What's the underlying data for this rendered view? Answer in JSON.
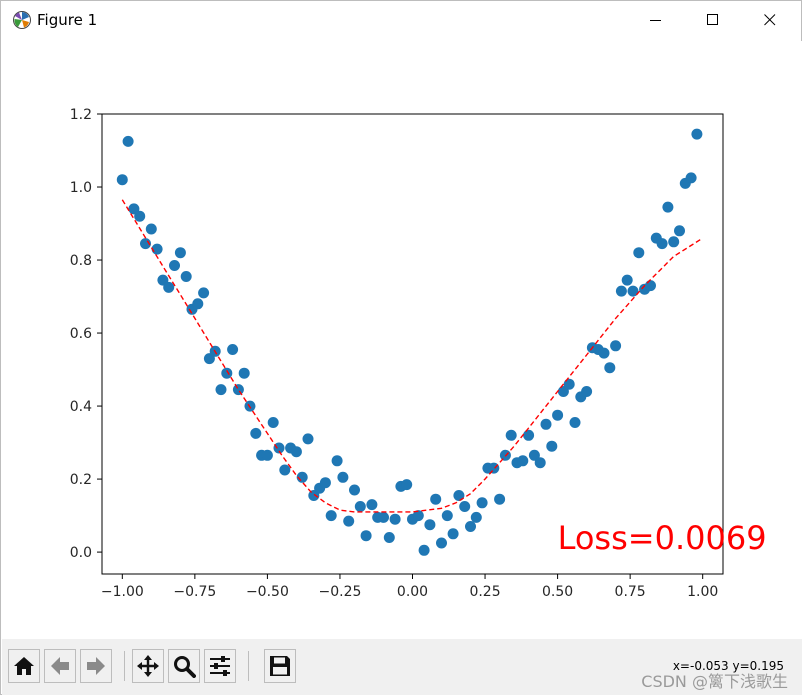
{
  "window": {
    "title": "Figure 1"
  },
  "icons": {
    "app": "matplotlib-figure-icon",
    "minimize": "minimize-icon",
    "maximize": "maximize-icon",
    "close": "close-icon",
    "home": "home-icon",
    "back": "arrow-left-icon",
    "forward": "arrow-right-icon",
    "pan": "move-arrows-icon",
    "zoom": "magnifier-icon",
    "configure": "sliders-icon",
    "save": "floppy-disk-icon"
  },
  "toolbar": {
    "coord_readout": "x=-0.053 y=0.195"
  },
  "watermark": "CSDN @篱下浅歌生",
  "colors": {
    "scatter": "#1f77b4",
    "fit": "#ff0000",
    "annotation": "#ff0000"
  },
  "chart_data": {
    "type": "scatter",
    "title": "",
    "xlabel": "",
    "ylabel": "",
    "xlim": [
      -1.07,
      1.07
    ],
    "ylim": [
      -0.06,
      1.2
    ],
    "xticks": [
      -1.0,
      -0.75,
      -0.5,
      -0.25,
      0.0,
      0.25,
      0.5,
      0.75,
      1.0
    ],
    "xtick_labels": [
      "−1.00",
      "−0.75",
      "−0.50",
      "−0.25",
      "0.00",
      "0.25",
      "0.50",
      "0.75",
      "1.00"
    ],
    "yticks": [
      0.0,
      0.2,
      0.4,
      0.6,
      0.8,
      1.0,
      1.2
    ],
    "ytick_labels": [
      "0.0",
      "0.2",
      "0.4",
      "0.6",
      "0.8",
      "1.0",
      "1.2"
    ],
    "grid": false,
    "annotation": {
      "text": "Loss=0.0069",
      "x": 0.5,
      "y": 0.0
    },
    "series": [
      {
        "kind": "scatter",
        "points": [
          [
            -1.0,
            1.02
          ],
          [
            -0.98,
            1.125
          ],
          [
            -0.96,
            0.94
          ],
          [
            -0.94,
            0.92
          ],
          [
            -0.92,
            0.845
          ],
          [
            -0.9,
            0.885
          ],
          [
            -0.88,
            0.83
          ],
          [
            -0.86,
            0.745
          ],
          [
            -0.84,
            0.725
          ],
          [
            -0.82,
            0.785
          ],
          [
            -0.8,
            0.82
          ],
          [
            -0.78,
            0.755
          ],
          [
            -0.76,
            0.665
          ],
          [
            -0.74,
            0.68
          ],
          [
            -0.72,
            0.71
          ],
          [
            -0.7,
            0.53
          ],
          [
            -0.68,
            0.55
          ],
          [
            -0.66,
            0.445
          ],
          [
            -0.64,
            0.49
          ],
          [
            -0.62,
            0.555
          ],
          [
            -0.6,
            0.445
          ],
          [
            -0.58,
            0.49
          ],
          [
            -0.56,
            0.4
          ],
          [
            -0.54,
            0.325
          ],
          [
            -0.52,
            0.265
          ],
          [
            -0.5,
            0.265
          ],
          [
            -0.48,
            0.355
          ],
          [
            -0.46,
            0.285
          ],
          [
            -0.44,
            0.225
          ],
          [
            -0.42,
            0.285
          ],
          [
            -0.4,
            0.275
          ],
          [
            -0.38,
            0.205
          ],
          [
            -0.36,
            0.31
          ],
          [
            -0.34,
            0.155
          ],
          [
            -0.32,
            0.175
          ],
          [
            -0.3,
            0.19
          ],
          [
            -0.28,
            0.1
          ],
          [
            -0.26,
            0.25
          ],
          [
            -0.24,
            0.205
          ],
          [
            -0.22,
            0.085
          ],
          [
            -0.2,
            0.17
          ],
          [
            -0.18,
            0.125
          ],
          [
            -0.16,
            0.045
          ],
          [
            -0.14,
            0.13
          ],
          [
            -0.12,
            0.095
          ],
          [
            -0.1,
            0.095
          ],
          [
            -0.08,
            0.04
          ],
          [
            -0.06,
            0.09
          ],
          [
            -0.04,
            0.18
          ],
          [
            -0.02,
            0.185
          ],
          [
            0.0,
            0.09
          ],
          [
            0.02,
            0.1
          ],
          [
            0.04,
            0.005
          ],
          [
            0.06,
            0.075
          ],
          [
            0.08,
            0.145
          ],
          [
            0.1,
            0.025
          ],
          [
            0.12,
            0.1
          ],
          [
            0.14,
            0.05
          ],
          [
            0.16,
            0.155
          ],
          [
            0.18,
            0.125
          ],
          [
            0.2,
            0.07
          ],
          [
            0.22,
            0.095
          ],
          [
            0.24,
            0.135
          ],
          [
            0.26,
            0.23
          ],
          [
            0.28,
            0.23
          ],
          [
            0.3,
            0.145
          ],
          [
            0.32,
            0.265
          ],
          [
            0.34,
            0.32
          ],
          [
            0.36,
            0.245
          ],
          [
            0.38,
            0.25
          ],
          [
            0.4,
            0.32
          ],
          [
            0.42,
            0.265
          ],
          [
            0.44,
            0.245
          ],
          [
            0.46,
            0.35
          ],
          [
            0.48,
            0.29
          ],
          [
            0.5,
            0.375
          ],
          [
            0.52,
            0.44
          ],
          [
            0.54,
            0.46
          ],
          [
            0.56,
            0.355
          ],
          [
            0.58,
            0.425
          ],
          [
            0.6,
            0.44
          ],
          [
            0.62,
            0.56
          ],
          [
            0.64,
            0.555
          ],
          [
            0.66,
            0.545
          ],
          [
            0.68,
            0.505
          ],
          [
            0.7,
            0.565
          ],
          [
            0.72,
            0.715
          ],
          [
            0.74,
            0.745
          ],
          [
            0.76,
            0.715
          ],
          [
            0.78,
            0.82
          ],
          [
            0.8,
            0.72
          ],
          [
            0.82,
            0.73
          ],
          [
            0.84,
            0.86
          ],
          [
            0.86,
            0.845
          ],
          [
            0.88,
            0.945
          ],
          [
            0.9,
            0.85
          ],
          [
            0.92,
            0.88
          ],
          [
            0.94,
            1.01
          ],
          [
            0.96,
            1.025
          ],
          [
            0.98,
            1.145
          ]
        ]
      },
      {
        "kind": "fit-line",
        "style": "dashed",
        "points": [
          [
            -1.0,
            0.965
          ],
          [
            -0.95,
            0.9
          ],
          [
            -0.9,
            0.835
          ],
          [
            -0.85,
            0.77
          ],
          [
            -0.8,
            0.705
          ],
          [
            -0.75,
            0.64
          ],
          [
            -0.7,
            0.575
          ],
          [
            -0.65,
            0.51
          ],
          [
            -0.6,
            0.445
          ],
          [
            -0.55,
            0.385
          ],
          [
            -0.5,
            0.325
          ],
          [
            -0.45,
            0.265
          ],
          [
            -0.4,
            0.21
          ],
          [
            -0.35,
            0.165
          ],
          [
            -0.3,
            0.135
          ],
          [
            -0.25,
            0.115
          ],
          [
            -0.2,
            0.11
          ],
          [
            -0.15,
            0.11
          ],
          [
            -0.1,
            0.11
          ],
          [
            -0.05,
            0.11
          ],
          [
            0.0,
            0.11
          ],
          [
            0.05,
            0.115
          ],
          [
            0.1,
            0.12
          ],
          [
            0.15,
            0.135
          ],
          [
            0.2,
            0.16
          ],
          [
            0.25,
            0.2
          ],
          [
            0.3,
            0.245
          ],
          [
            0.35,
            0.29
          ],
          [
            0.4,
            0.34
          ],
          [
            0.45,
            0.39
          ],
          [
            0.5,
            0.44
          ],
          [
            0.55,
            0.49
          ],
          [
            0.6,
            0.54
          ],
          [
            0.65,
            0.59
          ],
          [
            0.7,
            0.64
          ],
          [
            0.75,
            0.685
          ],
          [
            0.8,
            0.73
          ],
          [
            0.85,
            0.77
          ],
          [
            0.9,
            0.81
          ],
          [
            0.95,
            0.835
          ],
          [
            1.0,
            0.86
          ]
        ]
      }
    ]
  }
}
